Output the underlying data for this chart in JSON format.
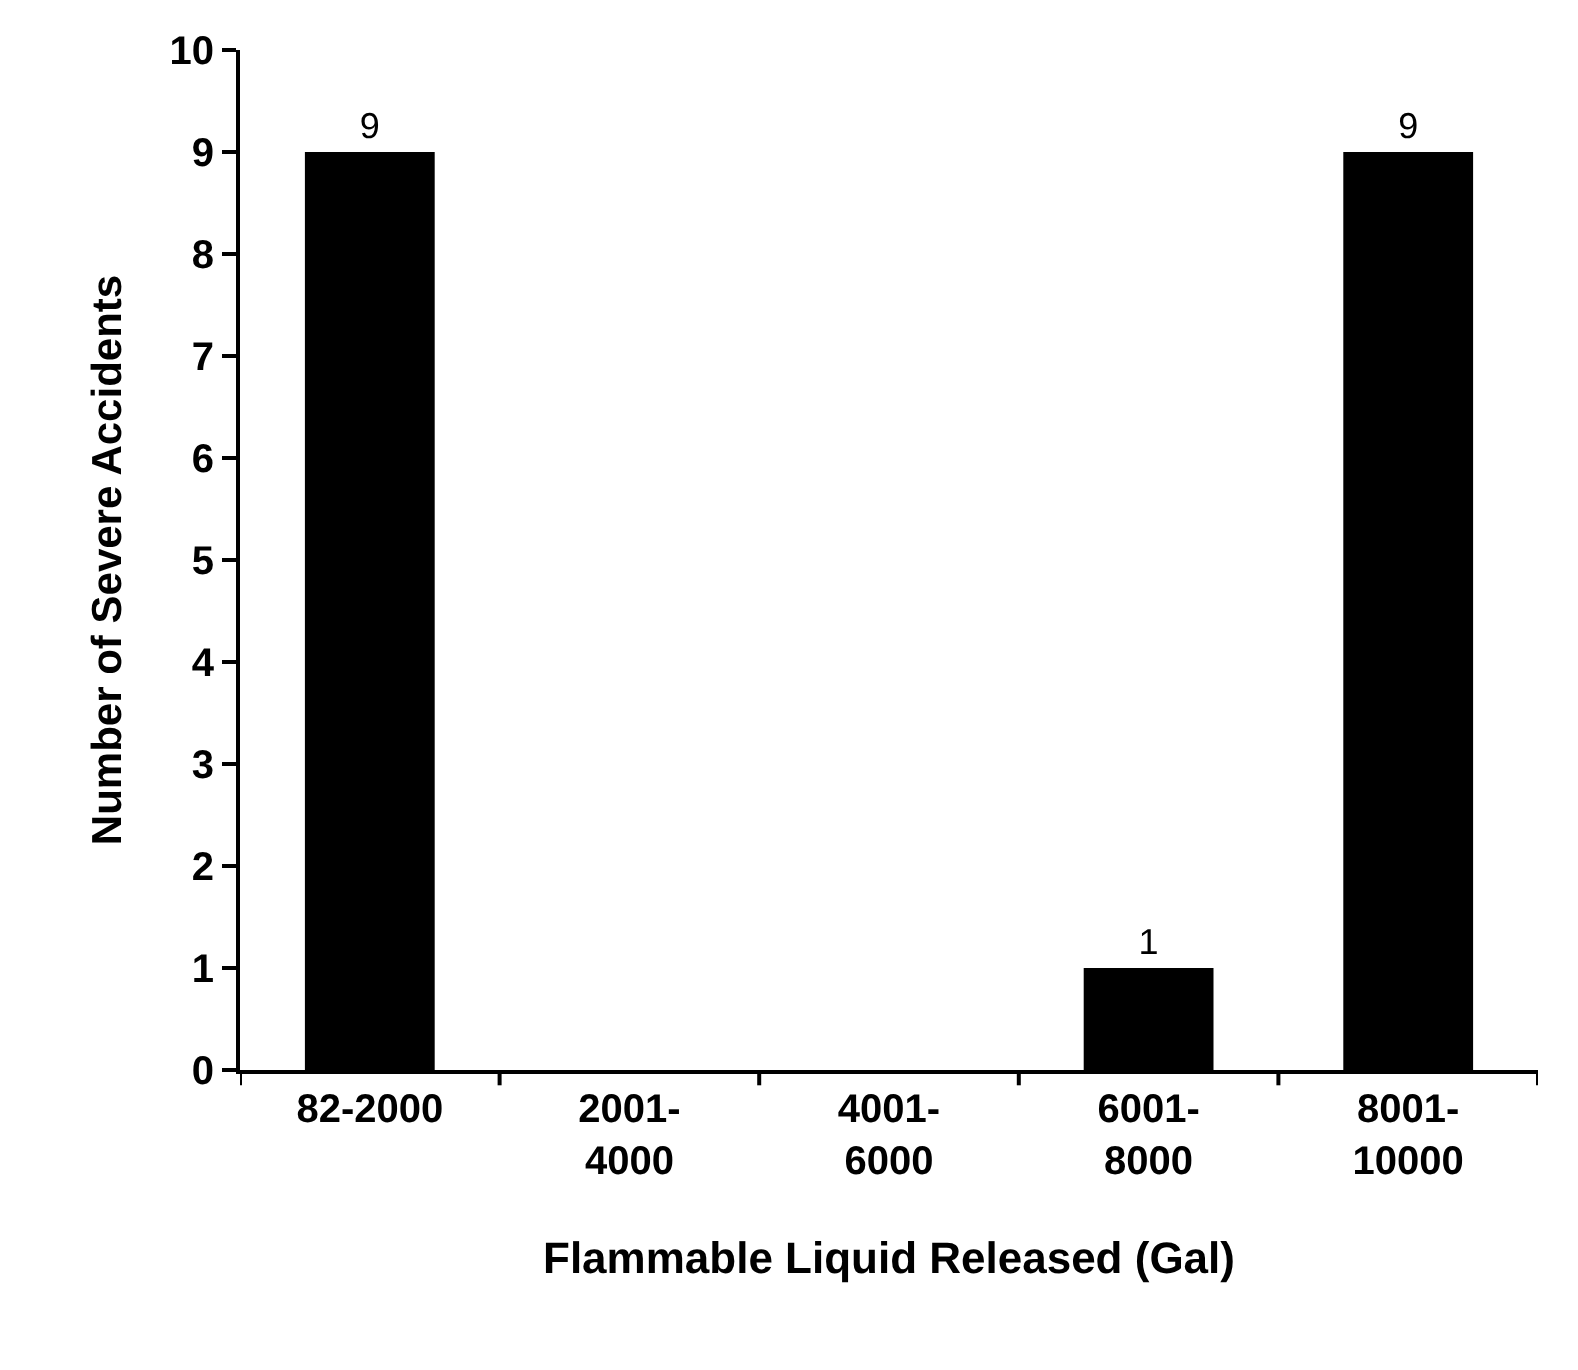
{
  "chart_data": {
    "type": "bar",
    "xlabel": "Flammable Liquid Released (Gal)",
    "ylabel": "Number of Severe Accidents",
    "categories": [
      "82-2000",
      "2001-\n4000",
      "4001-\n6000",
      "6001-\n8000",
      "8001-\n10000"
    ],
    "values": [
      9,
      0,
      0,
      1,
      9
    ],
    "value_labels": [
      "9",
      null,
      null,
      "1",
      "9"
    ],
    "color": "#000000",
    "ylim": [
      0,
      10
    ],
    "yticks": [
      0,
      1,
      2,
      3,
      4,
      5,
      6,
      7,
      8,
      9,
      10
    ],
    "grid": false,
    "legend": false
  }
}
